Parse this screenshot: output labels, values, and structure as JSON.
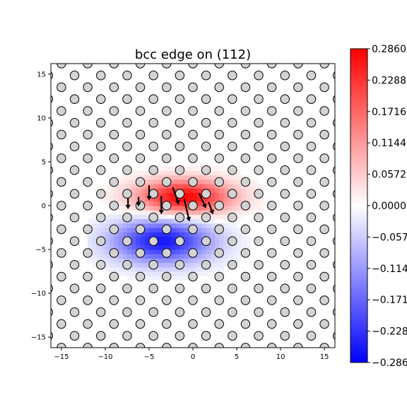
{
  "chart_data": {
    "type": "heatmap",
    "title": "bcc edge on (112)",
    "xlabel": "",
    "ylabel": "",
    "xlim": [
      -16.2,
      16.2
    ],
    "ylim": [
      -16.2,
      16.2
    ],
    "xticks": [
      -15,
      -10,
      -5,
      0,
      5,
      10,
      15
    ],
    "yticks": [
      -15,
      -10,
      -5,
      0,
      5,
      10,
      15
    ],
    "xtick_labels": [
      "−15",
      "−10",
      "−5",
      "0",
      "5",
      "10",
      "15"
    ],
    "ytick_labels": [
      "−15",
      "−10",
      "−5",
      "0",
      "5",
      "10",
      "15"
    ],
    "grid": false,
    "colormap": "bwr",
    "colorbar": {
      "min": -0.286,
      "max": 0.286,
      "tick_values": [
        0.286,
        0.2288,
        0.1716,
        0.1144,
        0.0572,
        0.0,
        -0.0572,
        -0.1144,
        -0.1716,
        -0.2288,
        -0.286
      ],
      "tick_labels": [
        "0.2860",
        "0.2288",
        "0.1716",
        "0.1144",
        "0.0572",
        "0.0000",
        "−0.0572",
        "−0.1144",
        "−0.1716",
        "−0.2288",
        "−0.2860"
      ]
    },
    "lattice": {
      "a1": [
        3.0,
        0
      ],
      "a2": [
        1.5,
        1.35
      ],
      "origin": [
        0,
        0
      ],
      "marker_fill": "#d3d3d3",
      "marker_edge": "#000000"
    },
    "strain_lobes": [
      {
        "center": [
          -1.0,
          1.0
        ],
        "sigma": [
          3.8,
          1.4
        ],
        "amplitude": 0.286
      },
      {
        "center": [
          -3.5,
          -4.0
        ],
        "sigma": [
          4.0,
          1.8
        ],
        "amplitude": -0.26
      }
    ],
    "displacement_arrows": [
      {
        "from": [
          -5.0,
          2.3
        ],
        "to": [
          -5.0,
          0.6
        ]
      },
      {
        "from": [
          -3.6,
          1.1
        ],
        "to": [
          -3.6,
          -1.0
        ]
      },
      {
        "from": [
          -2.3,
          2.1
        ],
        "to": [
          -1.6,
          0.1
        ]
      },
      {
        "from": [
          -1.0,
          0.8
        ],
        "to": [
          -0.4,
          -1.8
        ]
      },
      {
        "from": [
          0.7,
          1.4
        ],
        "to": [
          1.5,
          -0.3
        ]
      },
      {
        "from": [
          1.8,
          0.4
        ],
        "to": [
          2.3,
          -1.0
        ]
      },
      {
        "from": [
          -7.4,
          0.9
        ],
        "to": [
          -7.4,
          -0.4
        ]
      },
      {
        "from": [
          -6.2,
          1.0
        ],
        "to": [
          -6.2,
          -0.1
        ]
      }
    ],
    "colors": {
      "positive": "#ff0000",
      "negative": "#0000ff",
      "zero": "#ffffff"
    }
  }
}
